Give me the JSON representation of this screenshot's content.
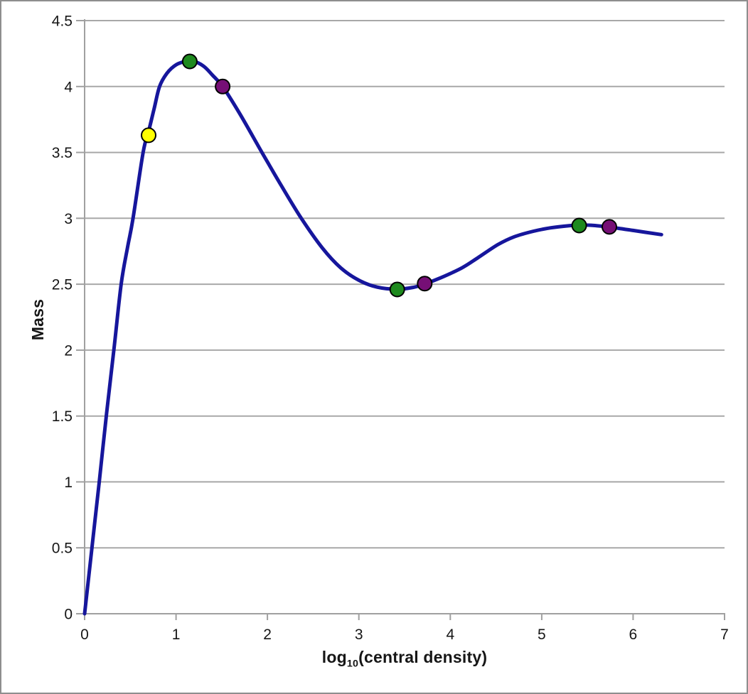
{
  "window": {
    "background_color": "#ffffff",
    "border_color": "#8e8e8e"
  },
  "chart_data": {
    "type": "line",
    "title": "",
    "xlabel": {
      "prefix": "log",
      "subscript": "10",
      "suffix": "(central density)"
    },
    "ylabel": "Mass",
    "xlim": [
      0,
      7
    ],
    "ylim": [
      0,
      4.5
    ],
    "xticks": [
      0,
      1,
      2,
      3,
      4,
      5,
      6,
      7
    ],
    "yticks": [
      0,
      0.5,
      1,
      1.5,
      2,
      2.5,
      3,
      3.5,
      4,
      4.5
    ],
    "grid": "horizontal-only",
    "legend": "none",
    "colors": {
      "grid": "#a8a8a8",
      "axis": "#a0a0a0",
      "curve": "#16169c",
      "marker_stroke": "#000000",
      "tick_text": "#161616"
    },
    "curve": {
      "name": "mass-vs-central-density",
      "stroke_width": 5,
      "points": [
        [
          0,
          0
        ],
        [
          0.08,
          0.5
        ],
        [
          0.16,
          1.0
        ],
        [
          0.24,
          1.52
        ],
        [
          0.32,
          2.0
        ],
        [
          0.4,
          2.5
        ],
        [
          0.47,
          2.78
        ],
        [
          0.53,
          3.0
        ],
        [
          0.64,
          3.5
        ],
        [
          0.7,
          3.66
        ],
        [
          0.76,
          3.83
        ],
        [
          0.82,
          4.0
        ],
        [
          0.9,
          4.1
        ],
        [
          1.0,
          4.165
        ],
        [
          1.1,
          4.19
        ],
        [
          1.18,
          4.195
        ],
        [
          1.3,
          4.155
        ],
        [
          1.4,
          4.085
        ],
        [
          1.51,
          4.0
        ],
        [
          1.7,
          3.79
        ],
        [
          1.94,
          3.5
        ],
        [
          2.15,
          3.25
        ],
        [
          2.37,
          3.0
        ],
        [
          2.6,
          2.775
        ],
        [
          2.8,
          2.625
        ],
        [
          3.0,
          2.53
        ],
        [
          3.2,
          2.478
        ],
        [
          3.42,
          2.462
        ],
        [
          3.6,
          2.477
        ],
        [
          3.72,
          2.502
        ],
        [
          3.9,
          2.55
        ],
        [
          4.13,
          2.625
        ],
        [
          4.3,
          2.7
        ],
        [
          4.52,
          2.8
        ],
        [
          4.7,
          2.86
        ],
        [
          4.91,
          2.902
        ],
        [
          5.1,
          2.928
        ],
        [
          5.3,
          2.944
        ],
        [
          5.45,
          2.949
        ],
        [
          5.6,
          2.944
        ],
        [
          5.74,
          2.934
        ],
        [
          6.0,
          2.908
        ],
        [
          6.31,
          2.876
        ]
      ]
    },
    "markers": [
      {
        "name": "yellow",
        "fill": "#ffff00",
        "points": [
          [
            0.7,
            3.63
          ]
        ]
      },
      {
        "name": "green",
        "fill": "#1e8a1e",
        "points": [
          [
            1.15,
            4.19
          ],
          [
            3.42,
            2.46
          ],
          [
            5.41,
            2.945
          ]
        ]
      },
      {
        "name": "purple",
        "fill": "#760f76",
        "points": [
          [
            1.51,
            4.0
          ],
          [
            3.72,
            2.505
          ],
          [
            5.74,
            2.935
          ]
        ]
      }
    ],
    "marker_radius": 10
  }
}
